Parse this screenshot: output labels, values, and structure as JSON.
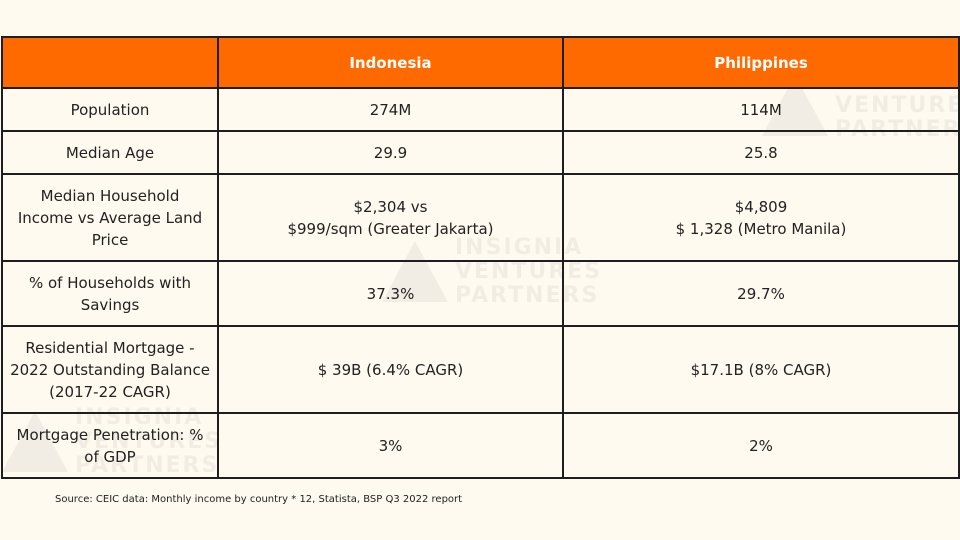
{
  "watermark": {
    "lines": [
      "INSIGNIA",
      "VENTURES",
      "PARTNERS"
    ]
  },
  "table": {
    "headers": [
      "",
      "Indonesia",
      "Philippines"
    ],
    "rows": [
      {
        "label": "Population",
        "indonesia": "274M",
        "philippines": "114M"
      },
      {
        "label": "Median Age",
        "indonesia": "29.9",
        "philippines": "25.8"
      },
      {
        "label": "Median Household\nIncome vs Average Land\nPrice",
        "indonesia": "$2,304 vs\n$999/sqm (Greater Jakarta)",
        "philippines": "$4,809\n$ 1,328 (Metro Manila)"
      },
      {
        "label": "% of Households with\nSavings",
        "indonesia": "37.3%",
        "philippines": "29.7%"
      },
      {
        "label": "Residential Mortgage -\n2022 Outstanding Balance\n(2017-22 CAGR)",
        "indonesia": "$ 39B (6.4% CAGR)",
        "philippines": "$17.1B (8% CAGR)"
      },
      {
        "label": "Mortgage Penetration: %\nof GDP",
        "indonesia": "3%",
        "philippines": "2%"
      }
    ]
  },
  "source": "Source: CEIC data: Monthly income by country * 12, Statista, BSP Q3 2022 report",
  "colors": {
    "header_bg": "#ff6a00",
    "header_text": "#ffffff",
    "page_bg": "#fffaf0",
    "border": "#1e1e1e"
  }
}
